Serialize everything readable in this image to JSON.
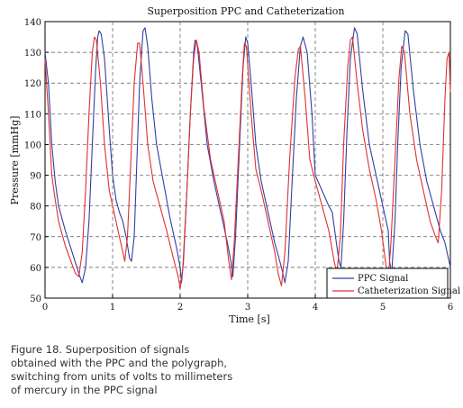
{
  "chart_data": {
    "type": "line",
    "title": "Superposition PPC and Catheterization",
    "xlabel": "Time [s]",
    "ylabel": "Pressure [mmHg]",
    "xlim": [
      0,
      6
    ],
    "ylim": [
      50,
      140
    ],
    "xticks": [
      0,
      1,
      2,
      3,
      4,
      5,
      6
    ],
    "yticks": [
      50,
      60,
      70,
      80,
      90,
      100,
      110,
      120,
      130,
      140
    ],
    "grid": true,
    "legend_position": "bottom-right",
    "series": [
      {
        "name": "PPC Signal",
        "color": "#3040a0",
        "points": [
          [
            0.0,
            130
          ],
          [
            0.05,
            120
          ],
          [
            0.1,
            100
          ],
          [
            0.15,
            88
          ],
          [
            0.2,
            80
          ],
          [
            0.3,
            72
          ],
          [
            0.4,
            65
          ],
          [
            0.5,
            58
          ],
          [
            0.55,
            55
          ],
          [
            0.6,
            60
          ],
          [
            0.65,
            75
          ],
          [
            0.7,
            100
          ],
          [
            0.75,
            125
          ],
          [
            0.78,
            135
          ],
          [
            0.8,
            137
          ],
          [
            0.83,
            136
          ],
          [
            0.88,
            128
          ],
          [
            0.95,
            105
          ],
          [
            1.0,
            90
          ],
          [
            1.05,
            82
          ],
          [
            1.1,
            78
          ],
          [
            1.15,
            75
          ],
          [
            1.2,
            70
          ],
          [
            1.25,
            63
          ],
          [
            1.28,
            62
          ],
          [
            1.32,
            70
          ],
          [
            1.36,
            95
          ],
          [
            1.4,
            120
          ],
          [
            1.45,
            137
          ],
          [
            1.48,
            138
          ],
          [
            1.52,
            132
          ],
          [
            1.58,
            115
          ],
          [
            1.65,
            100
          ],
          [
            1.75,
            88
          ],
          [
            1.85,
            76
          ],
          [
            1.95,
            66
          ],
          [
            2.0,
            60
          ],
          [
            2.02,
            55
          ],
          [
            2.05,
            62
          ],
          [
            2.1,
            85
          ],
          [
            2.15,
            110
          ],
          [
            2.2,
            130
          ],
          [
            2.22,
            134
          ],
          [
            2.25,
            133
          ],
          [
            2.32,
            118
          ],
          [
            2.4,
            100
          ],
          [
            2.5,
            88
          ],
          [
            2.6,
            78
          ],
          [
            2.7,
            68
          ],
          [
            2.75,
            62
          ],
          [
            2.78,
            57
          ],
          [
            2.82,
            70
          ],
          [
            2.88,
            100
          ],
          [
            2.93,
            125
          ],
          [
            2.97,
            135
          ],
          [
            3.0,
            133
          ],
          [
            3.05,
            120
          ],
          [
            3.12,
            100
          ],
          [
            3.2,
            88
          ],
          [
            3.3,
            78
          ],
          [
            3.4,
            68
          ],
          [
            3.5,
            60
          ],
          [
            3.55,
            55
          ],
          [
            3.6,
            62
          ],
          [
            3.65,
            85
          ],
          [
            3.72,
            115
          ],
          [
            3.78,
            132
          ],
          [
            3.82,
            135
          ],
          [
            3.88,
            130
          ],
          [
            3.95,
            110
          ],
          [
            4.0,
            90
          ],
          [
            4.1,
            85
          ],
          [
            4.2,
            80
          ],
          [
            4.25,
            78
          ],
          [
            4.3,
            70
          ],
          [
            4.35,
            62
          ],
          [
            4.38,
            60
          ],
          [
            4.42,
            75
          ],
          [
            4.47,
            105
          ],
          [
            4.52,
            128
          ],
          [
            4.58,
            138
          ],
          [
            4.62,
            136
          ],
          [
            4.7,
            118
          ],
          [
            4.8,
            100
          ],
          [
            4.9,
            90
          ],
          [
            5.0,
            80
          ],
          [
            5.08,
            72
          ],
          [
            5.1,
            62
          ],
          [
            5.13,
            58
          ],
          [
            5.18,
            75
          ],
          [
            5.22,
            100
          ],
          [
            5.27,
            125
          ],
          [
            5.33,
            137
          ],
          [
            5.37,
            136
          ],
          [
            5.45,
            118
          ],
          [
            5.55,
            100
          ],
          [
            5.65,
            88
          ],
          [
            5.75,
            80
          ],
          [
            5.85,
            72
          ],
          [
            5.92,
            68
          ],
          [
            6.0,
            60
          ]
        ]
      },
      {
        "name": "Catheterization Signal",
        "color": "#e03030",
        "points": [
          [
            0.0,
            128
          ],
          [
            0.05,
            110
          ],
          [
            0.1,
            90
          ],
          [
            0.15,
            82
          ],
          [
            0.2,
            75
          ],
          [
            0.3,
            67
          ],
          [
            0.4,
            61
          ],
          [
            0.45,
            58
          ],
          [
            0.5,
            57
          ],
          [
            0.55,
            65
          ],
          [
            0.6,
            85
          ],
          [
            0.65,
            110
          ],
          [
            0.7,
            130
          ],
          [
            0.73,
            135
          ],
          [
            0.76,
            134
          ],
          [
            0.82,
            120
          ],
          [
            0.88,
            100
          ],
          [
            0.95,
            85
          ],
          [
            1.05,
            75
          ],
          [
            1.1,
            70
          ],
          [
            1.15,
            65
          ],
          [
            1.18,
            62
          ],
          [
            1.22,
            70
          ],
          [
            1.27,
            95
          ],
          [
            1.32,
            120
          ],
          [
            1.37,
            133
          ],
          [
            1.4,
            133
          ],
          [
            1.45,
            120
          ],
          [
            1.52,
            100
          ],
          [
            1.6,
            88
          ],
          [
            1.7,
            80
          ],
          [
            1.8,
            72
          ],
          [
            1.9,
            63
          ],
          [
            1.97,
            57
          ],
          [
            2.0,
            53
          ],
          [
            2.04,
            60
          ],
          [
            2.1,
            85
          ],
          [
            2.15,
            110
          ],
          [
            2.2,
            128
          ],
          [
            2.24,
            134
          ],
          [
            2.28,
            130
          ],
          [
            2.35,
            112
          ],
          [
            2.45,
            95
          ],
          [
            2.55,
            85
          ],
          [
            2.65,
            75
          ],
          [
            2.72,
            62
          ],
          [
            2.76,
            56
          ],
          [
            2.8,
            68
          ],
          [
            2.86,
            95
          ],
          [
            2.92,
            122
          ],
          [
            2.95,
            133
          ],
          [
            2.98,
            132
          ],
          [
            3.05,
            110
          ],
          [
            3.12,
            92
          ],
          [
            3.2,
            85
          ],
          [
            3.3,
            75
          ],
          [
            3.4,
            65
          ],
          [
            3.45,
            58
          ],
          [
            3.5,
            54
          ],
          [
            3.55,
            65
          ],
          [
            3.62,
            95
          ],
          [
            3.7,
            122
          ],
          [
            3.75,
            131
          ],
          [
            3.78,
            132
          ],
          [
            3.85,
            115
          ],
          [
            3.92,
            95
          ],
          [
            4.0,
            88
          ],
          [
            4.1,
            80
          ],
          [
            4.2,
            72
          ],
          [
            4.28,
            62
          ],
          [
            4.32,
            58
          ],
          [
            4.37,
            70
          ],
          [
            4.42,
            100
          ],
          [
            4.48,
            125
          ],
          [
            4.52,
            134
          ],
          [
            4.55,
            135
          ],
          [
            4.62,
            120
          ],
          [
            4.7,
            105
          ],
          [
            4.8,
            92
          ],
          [
            4.9,
            82
          ],
          [
            4.98,
            72
          ],
          [
            5.05,
            60
          ],
          [
            5.08,
            56
          ],
          [
            5.12,
            68
          ],
          [
            5.18,
            95
          ],
          [
            5.24,
            122
          ],
          [
            5.28,
            132
          ],
          [
            5.32,
            130
          ],
          [
            5.4,
            110
          ],
          [
            5.5,
            95
          ],
          [
            5.6,
            85
          ],
          [
            5.7,
            75
          ],
          [
            5.78,
            70
          ],
          [
            5.82,
            68
          ],
          [
            5.87,
            85
          ],
          [
            5.92,
            115
          ],
          [
            5.95,
            128
          ],
          [
            5.98,
            130
          ],
          [
            6.0,
            117
          ]
        ]
      }
    ]
  },
  "caption": {
    "line1": "Figure 18. Superposition of signals",
    "line2": "obtained with the PPC and the polygraph,",
    "line3": "switching from units of volts to millimeters",
    "line4": "of mercury in the PPC signal"
  }
}
